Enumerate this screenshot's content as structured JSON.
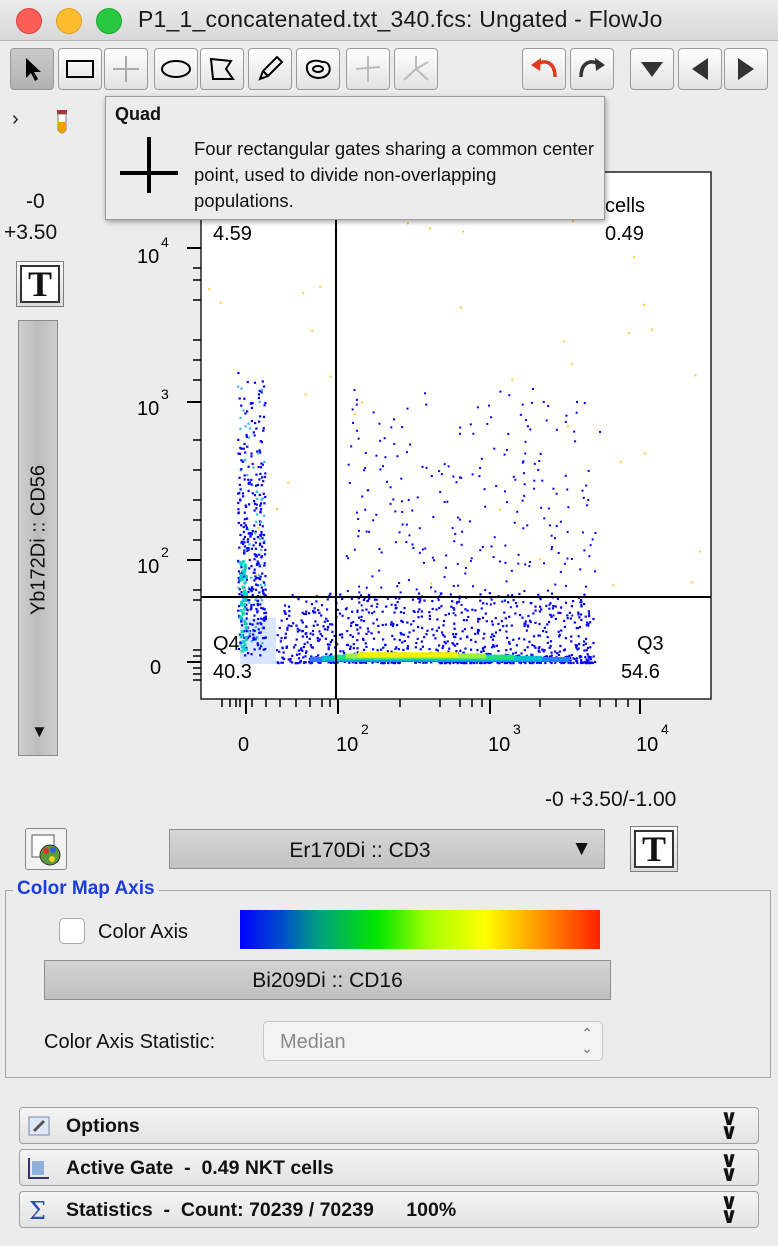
{
  "window": {
    "title": "P1_1_concatenated.txt_340.fcs: Ungated - FlowJo"
  },
  "toolbar": {
    "tools": [
      "pointer",
      "rectangle",
      "quad",
      "ellipse",
      "polygon",
      "freehand",
      "spider",
      "quad-spider",
      "web"
    ],
    "undo": "undo-icon",
    "redo": "redo-icon"
  },
  "tooltip": {
    "title": "Quad",
    "description": "Four rectangular gates sharing a common center point, used to divide non-overlapping populations."
  },
  "y_axis": {
    "parameter": "Yb172Di :: CD56",
    "range_top": "-0",
    "range_bottom": "+3.50",
    "ticks": [
      "0",
      "10",
      "10",
      "10",
      "10"
    ],
    "tick_exponents": [
      "",
      "",
      "2",
      "3",
      "4"
    ]
  },
  "x_axis": {
    "parameter": "Er170Di :: CD3",
    "range": "-0 +3.50/-1.00",
    "ticks": [
      "0",
      "10",
      "10",
      "10"
    ],
    "tick_exponents": [
      "",
      "2",
      "3",
      "4"
    ]
  },
  "quadrants": {
    "q1": {
      "name": "",
      "value": "4.59"
    },
    "q2": {
      "name": "cells",
      "value": "0.49"
    },
    "q3": {
      "name": "Q3",
      "value": "54.6"
    },
    "q4": {
      "name": "Q4",
      "value": "40.3"
    }
  },
  "color_map": {
    "legend": "Color Map Axis",
    "checkbox_label": "Color Axis",
    "checked": false,
    "parameter": "Bi209Di :: CD16",
    "statistic_label": "Color Axis Statistic:",
    "statistic_value": "Median"
  },
  "panels": {
    "options": "Options",
    "active_gate": "Active Gate  -  0.49 NKT cells",
    "statistics": "Statistics  -  Count: 70239 / 70239      100%"
  },
  "colors": {
    "accent": "#1c3ce0",
    "density_low": "#0000ff",
    "density_high": "#ffff00"
  }
}
